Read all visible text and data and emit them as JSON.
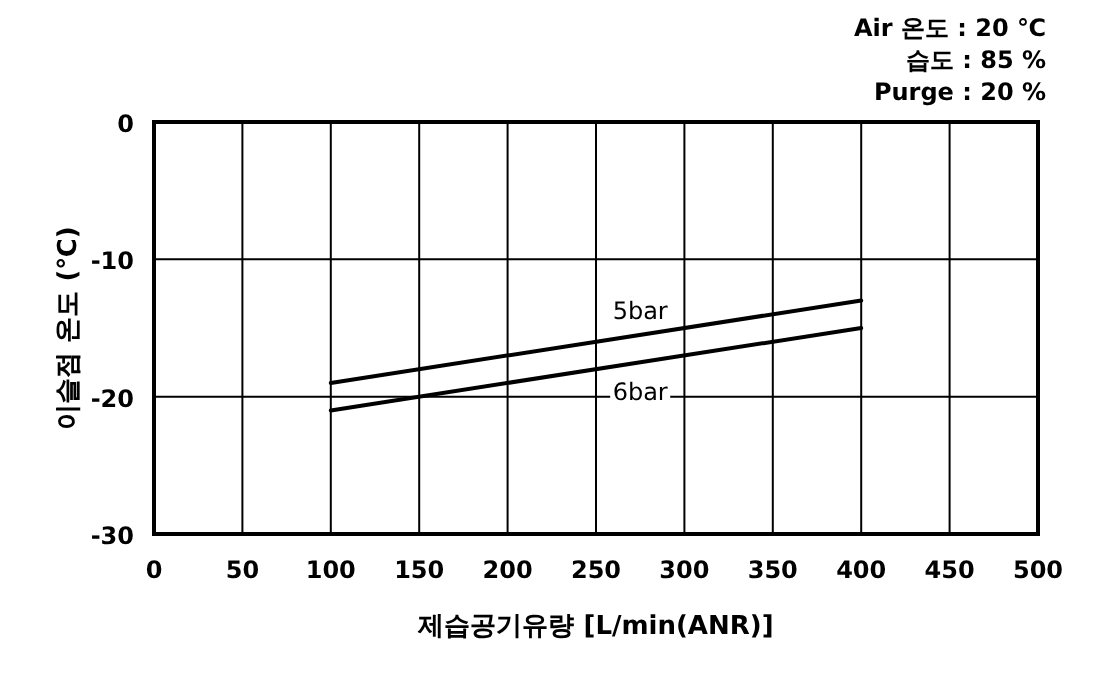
{
  "chart_data": {
    "type": "line",
    "xlabel": "제습공기유량 [L/min(ANR)]",
    "ylabel": "이슬점 온도 (℃)",
    "annotations": [
      "Air 온도 : 20 ℃",
      "습도 : 85 %",
      "Purge : 20 %"
    ],
    "xlim": [
      0,
      500
    ],
    "xticks": [
      0,
      50,
      100,
      150,
      200,
      250,
      300,
      350,
      400,
      450,
      500
    ],
    "ylim": [
      -30,
      0
    ],
    "yticks": [
      0,
      -10,
      -20,
      -30
    ],
    "grid": true,
    "marker": "none",
    "x": [
      100,
      400
    ],
    "line_style": "solid",
    "series": [
      {
        "name": "5bar",
        "color": "#000000",
        "values": [
          -19,
          -13
        ]
      },
      {
        "name": "6bar",
        "color": "#000000",
        "values": [
          -21,
          -15
        ]
      }
    ]
  }
}
